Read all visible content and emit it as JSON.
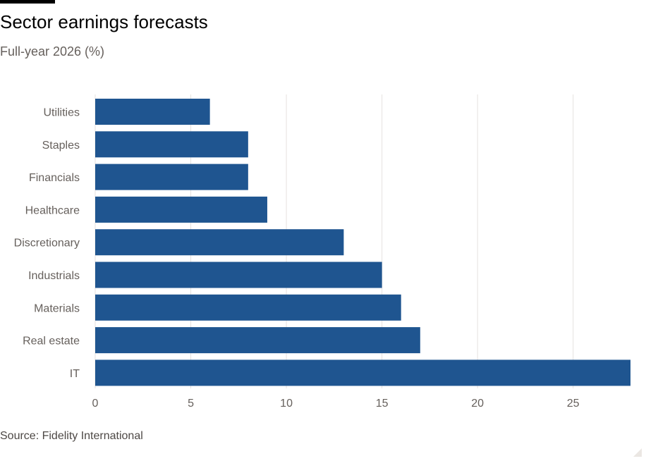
{
  "chart_data": {
    "type": "bar",
    "orientation": "horizontal",
    "title": "Sector earnings forecasts",
    "subtitle": "Full-year 2026 (%)",
    "source": "Source: Fidelity International",
    "categories": [
      "Utilities",
      "Staples",
      "Financials",
      "Healthcare",
      "Discretionary",
      "Industrials",
      "Materials",
      "Real estate",
      "IT"
    ],
    "values": [
      6,
      8,
      8,
      9,
      13,
      15,
      16,
      17,
      28
    ],
    "xlim": [
      0,
      28
    ],
    "ticks": [
      0,
      5,
      10,
      15,
      20,
      25
    ],
    "tick_labels": [
      "0",
      "5",
      "10",
      "15",
      "20",
      "25"
    ],
    "xlabel": "",
    "ylabel": "",
    "grid": true,
    "bar_color": "#1f5590",
    "grid_color": "#e6e2df"
  }
}
